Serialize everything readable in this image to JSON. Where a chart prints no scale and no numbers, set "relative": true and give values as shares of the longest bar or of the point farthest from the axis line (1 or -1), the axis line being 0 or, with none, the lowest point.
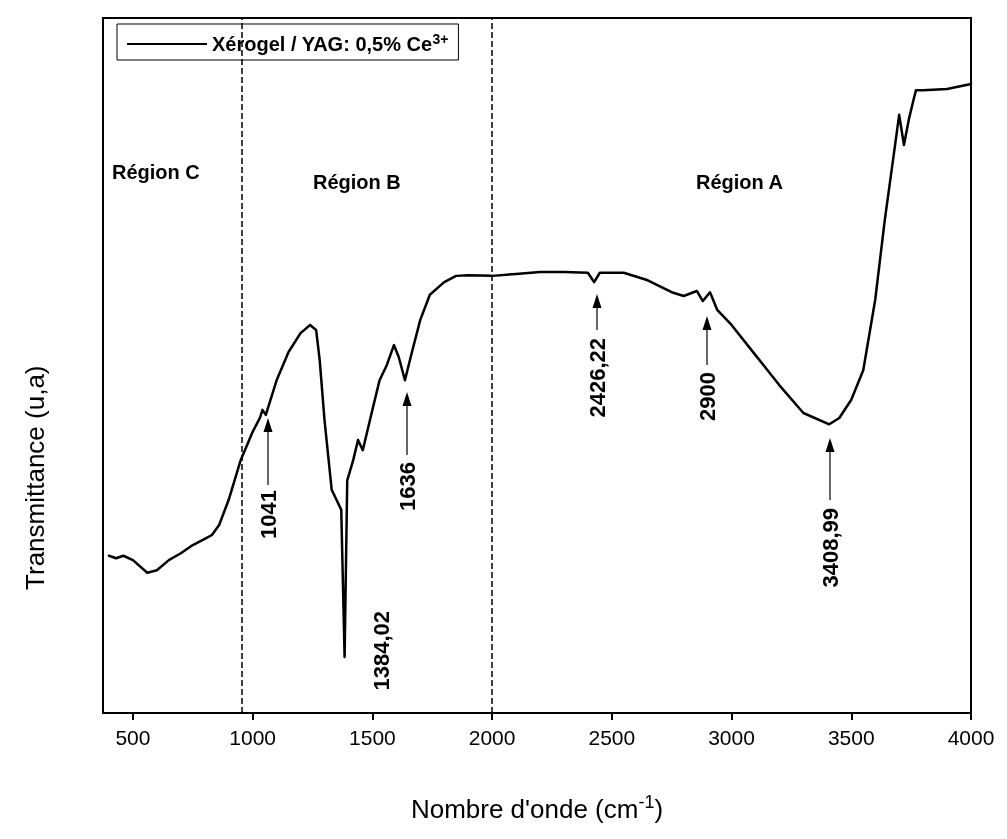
{
  "chart_data": {
    "type": "line",
    "relative": true,
    "xlabel": "Nombre d'onde (cm$^{-1}$)",
    "ylabel": "Transmittance (u,a)",
    "xlim": [
      375,
      4000
    ],
    "xticks": [
      500,
      1000,
      1500,
      2000,
      2500,
      3000,
      3500,
      4000
    ],
    "legend": "top left",
    "grid": false,
    "marker": "none",
    "line_style": "solid",
    "series": [
      {
        "name": "Xérogel / YAG: 0,5% Ce$^{3+}$",
        "color": "#000000",
        "x": [
          400,
          430,
          460,
          500,
          560,
          600,
          650,
          700,
          750,
          800,
          830,
          860,
          900,
          950,
          1000,
          1030,
          1041,
          1055,
          1100,
          1150,
          1200,
          1240,
          1265,
          1280,
          1300,
          1330,
          1350,
          1370,
          1384,
          1395,
          1420,
          1440,
          1460,
          1480,
          1500,
          1530,
          1560,
          1590,
          1610,
          1636,
          1660,
          1700,
          1740,
          1800,
          1850,
          1900,
          2000,
          2100,
          2200,
          2300,
          2400,
          2426,
          2450,
          2550,
          2650,
          2750,
          2800,
          2855,
          2880,
          2910,
          2940,
          3000,
          3100,
          3200,
          3300,
          3408,
          3450,
          3500,
          3550,
          3600,
          3640,
          3680,
          3700,
          3720,
          3740,
          3760,
          3770,
          3800,
          3900,
          4000
        ],
        "values": [
          0.25,
          0.246,
          0.25,
          0.243,
          0.223,
          0.227,
          0.243,
          0.254,
          0.267,
          0.277,
          0.283,
          0.299,
          0.339,
          0.402,
          0.447,
          0.469,
          0.482,
          0.474,
          0.529,
          0.574,
          0.604,
          0.617,
          0.609,
          0.561,
          0.466,
          0.355,
          0.339,
          0.323,
          0.089,
          0.37,
          0.402,
          0.434,
          0.418,
          0.45,
          0.482,
          0.529,
          0.553,
          0.585,
          0.566,
          0.529,
          0.566,
          0.625,
          0.665,
          0.685,
          0.695,
          0.696,
          0.695,
          0.698,
          0.701,
          0.701,
          0.7,
          0.685,
          0.7,
          0.7,
          0.688,
          0.669,
          0.663,
          0.671,
          0.655,
          0.669,
          0.641,
          0.617,
          0.569,
          0.521,
          0.477,
          0.459,
          0.469,
          0.498,
          0.545,
          0.657,
          0.784,
          0.895,
          0.951,
          0.903,
          0.943,
          0.975,
          0.99,
          0.99,
          0.992,
          1.0
        ]
      }
    ],
    "ref_lines": [
      {
        "axis": "x",
        "value": 955,
        "line_style": "dashed"
      },
      {
        "axis": "x",
        "value": 2000,
        "line_style": "dashed"
      }
    ],
    "annotations": [
      "Région C",
      "Région B",
      "Région A",
      "1041",
      "1384,02",
      "1636",
      "2426,22",
      "2900",
      "3408,99"
    ]
  }
}
